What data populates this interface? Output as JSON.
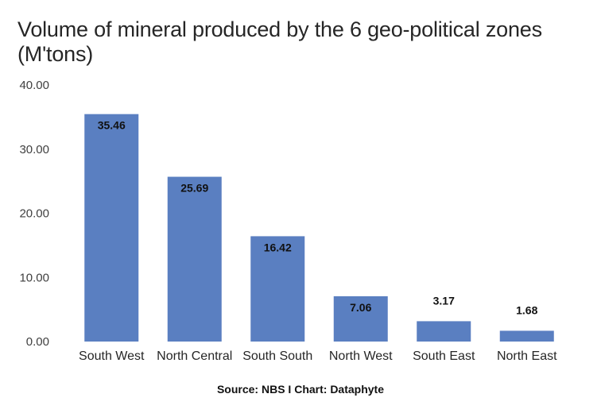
{
  "chart_data": {
    "type": "bar",
    "title": "Volume of mineral produced by the 6 geo-political zones (M'tons)",
    "categories": [
      "South West",
      "North Central",
      "South South",
      "North West",
      "South East",
      "North East"
    ],
    "values": [
      35.46,
      25.69,
      16.42,
      7.06,
      3.17,
      1.68
    ],
    "data_labels": [
      "35.46",
      "25.69",
      "16.42",
      "7.06",
      "3.17",
      "1.68"
    ],
    "ylim": [
      0,
      40
    ],
    "yticks": [
      "0.00",
      "10.00",
      "20.00",
      "30.00",
      "40.00"
    ],
    "ytick_values": [
      0,
      10,
      20,
      30,
      40
    ],
    "xlabel": "",
    "ylabel": "",
    "grid": false,
    "legend": "none",
    "bar_color": "#5a7fc1"
  },
  "footer": {
    "source": "Source: NBS I Chart: Dataphyte"
  }
}
